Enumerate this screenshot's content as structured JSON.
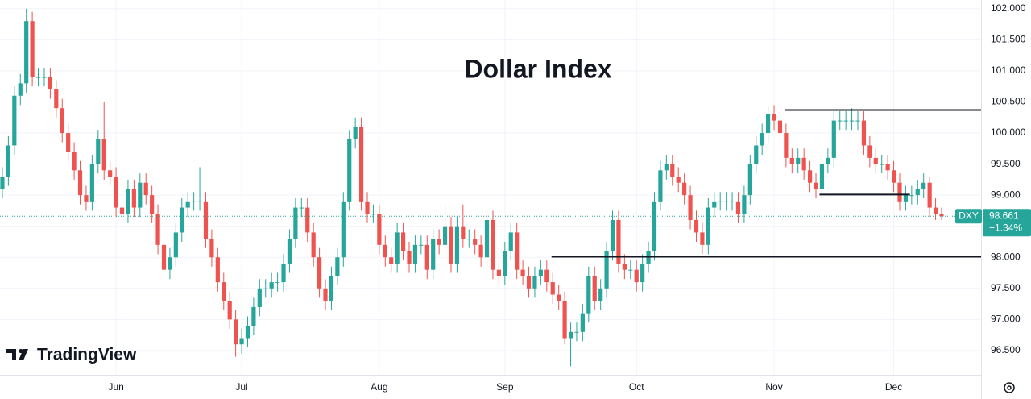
{
  "chart_data": {
    "type": "candlestick",
    "title": "Dollar Index",
    "brand": "TradingView",
    "up_color": "#26a69a",
    "down_color": "#ef5350",
    "grid": true,
    "xlim": [
      -0.4,
      163.6
    ],
    "ylim": [
      96.11,
      102.14
    ],
    "xticks": [
      {
        "value": 19,
        "label": "Jun"
      },
      {
        "value": 40,
        "label": "Jul"
      },
      {
        "value": 63,
        "label": "Aug"
      },
      {
        "value": 84,
        "label": "Sep"
      },
      {
        "value": 106,
        "label": "Oct"
      },
      {
        "value": 129,
        "label": "Nov"
      },
      {
        "value": 149,
        "label": "Dec"
      }
    ],
    "yticks": [
      {
        "value": 96.5,
        "label": "96.500"
      },
      {
        "value": 97,
        "label": "97.000"
      },
      {
        "value": 97.5,
        "label": "97.500"
      },
      {
        "value": 98,
        "label": "98.000"
      },
      {
        "value": 98.5,
        "label": "98.500"
      },
      {
        "value": 99,
        "label": "99.000"
      },
      {
        "value": 99.5,
        "label": "99.500"
      },
      {
        "value": 100,
        "label": "100.000"
      },
      {
        "value": 100.5,
        "label": "100.500"
      },
      {
        "value": 101,
        "label": "101.000"
      },
      {
        "value": 101.5,
        "label": "101.500"
      },
      {
        "value": 102,
        "label": "102.000"
      }
    ],
    "open": [
      99.1,
      99.3,
      99.8,
      100.6,
      100.8,
      101.8,
      100.9,
      100.9,
      100.9,
      100.7,
      100.4,
      100.0,
      99.7,
      99.4,
      99.0,
      98.9,
      99.5,
      99.9,
      99.4,
      99.3,
      98.8,
      98.7,
      99.1,
      98.8,
      99.2,
      99.0,
      98.7,
      98.2,
      97.8,
      98.0,
      98.4,
      98.8,
      98.9,
      98.9,
      98.9,
      98.3,
      98.0,
      97.6,
      97.3,
      97.0,
      96.6,
      96.7,
      96.9,
      97.2,
      97.5,
      97.5,
      97.6,
      97.6,
      97.9,
      98.3,
      98.8,
      98.8,
      98.4,
      98.0,
      97.5,
      97.3,
      97.7,
      98.0,
      98.9,
      99.9,
      100.1,
      98.9,
      98.7,
      98.7,
      98.2,
      98.0,
      97.9,
      98.4,
      98.1,
      97.9,
      98.2,
      98.2,
      97.8,
      98.3,
      98.2,
      98.5,
      97.9,
      98.5,
      98.3,
      98.3,
      98.2,
      98.0,
      98.6,
      97.8,
      97.7,
      98.1,
      98.4,
      97.8,
      97.7,
      97.5,
      97.7,
      97.8,
      97.6,
      97.4,
      97.3,
      96.7,
      96.8,
      96.8,
      97.1,
      97.7,
      97.3,
      97.5,
      98.1,
      98.6,
      97.9,
      97.8,
      97.8,
      97.6,
      97.9,
      98.1,
      98.9,
      99.4,
      99.5,
      99.3,
      99.2,
      99.0,
      98.6,
      98.4,
      98.2,
      98.8,
      98.9,
      98.9,
      98.9,
      98.9,
      98.7,
      99.0,
      99.5,
      99.8,
      100.0,
      100.3,
      100.2,
      100.0,
      99.6,
      99.5,
      99.6,
      99.4,
      99.2,
      99.1,
      99.5,
      99.6,
      100.2,
      100.2,
      100.2,
      100.2,
      100.2,
      99.8,
      99.6,
      99.5,
      99.5,
      99.4,
      99.2,
      98.9,
      99.0,
      99.0,
      99.1,
      99.2,
      98.8,
      98.7
    ],
    "high": [
      99.45,
      99.95,
      100.75,
      100.95,
      102.0,
      101.95,
      101.05,
      101.05,
      101.05,
      100.85,
      100.55,
      100.15,
      99.85,
      99.55,
      99.15,
      99.65,
      100.05,
      100.5,
      99.55,
      99.45,
      98.95,
      99.25,
      99.25,
      99.35,
      99.35,
      99.15,
      98.85,
      98.35,
      98.15,
      98.55,
      98.95,
      99.05,
      99.05,
      99.45,
      99.05,
      98.45,
      98.15,
      97.75,
      97.45,
      97.15,
      96.85,
      97.05,
      97.35,
      97.65,
      97.65,
      97.75,
      97.75,
      98.05,
      98.45,
      98.95,
      98.95,
      98.95,
      98.55,
      98.15,
      97.65,
      97.85,
      98.15,
      99.05,
      100.05,
      100.25,
      100.25,
      99.05,
      98.85,
      98.85,
      98.35,
      98.15,
      98.55,
      98.55,
      98.25,
      98.35,
      98.35,
      98.35,
      98.45,
      98.45,
      98.85,
      98.65,
      98.65,
      98.85,
      98.45,
      98.45,
      98.35,
      98.75,
      98.75,
      97.95,
      98.25,
      98.55,
      98.55,
      97.95,
      97.85,
      97.85,
      97.95,
      97.95,
      97.75,
      97.55,
      97.45,
      96.95,
      96.95,
      97.25,
      97.85,
      97.85,
      97.65,
      98.25,
      98.75,
      98.75,
      98.05,
      97.95,
      97.95,
      98.05,
      98.25,
      99.05,
      99.55,
      99.65,
      99.65,
      99.45,
      99.35,
      99.15,
      98.75,
      98.55,
      98.95,
      99.05,
      99.05,
      99.05,
      99.05,
      99.05,
      99.15,
      99.65,
      99.95,
      100.15,
      100.45,
      100.45,
      100.35,
      100.15,
      99.75,
      99.75,
      99.75,
      99.55,
      99.35,
      99.65,
      99.75,
      100.35,
      100.35,
      100.35,
      100.4,
      100.35,
      100.35,
      99.95,
      99.75,
      99.65,
      99.65,
      99.55,
      99.35,
      99.15,
      99.15,
      99.25,
      99.35,
      99.3,
      98.95,
      98.8
    ],
    "low": [
      98.95,
      99.15,
      99.65,
      100.45,
      100.65,
      100.75,
      100.75,
      100.75,
      100.55,
      100.25,
      99.85,
      99.55,
      99.25,
      98.85,
      98.75,
      98.75,
      99.35,
      99.25,
      99.15,
      98.65,
      98.55,
      98.55,
      98.65,
      98.65,
      98.85,
      98.55,
      98.05,
      97.6,
      97.65,
      97.85,
      98.25,
      98.65,
      98.75,
      98.75,
      98.15,
      97.85,
      97.45,
      97.15,
      96.85,
      96.4,
      96.45,
      96.55,
      96.75,
      97.05,
      97.35,
      97.35,
      97.45,
      97.45,
      97.75,
      98.15,
      98.65,
      98.25,
      97.85,
      97.35,
      97.15,
      97.15,
      97.55,
      97.85,
      98.75,
      99.75,
      98.75,
      98.55,
      98.55,
      98.05,
      97.85,
      97.75,
      97.75,
      97.95,
      97.75,
      97.75,
      98.05,
      97.65,
      97.65,
      98.05,
      98.05,
      97.75,
      97.75,
      98.15,
      98.15,
      98.05,
      97.85,
      97.85,
      97.65,
      97.55,
      97.55,
      97.95,
      97.65,
      97.55,
      97.35,
      97.35,
      97.55,
      97.45,
      97.25,
      97.15,
      96.6,
      96.25,
      96.65,
      96.65,
      96.95,
      97.15,
      97.15,
      97.35,
      97.95,
      97.75,
      97.65,
      97.65,
      97.45,
      97.45,
      97.75,
      97.95,
      98.75,
      99.25,
      99.15,
      99.05,
      98.85,
      98.45,
      98.25,
      98.05,
      98.05,
      98.65,
      98.75,
      98.75,
      98.75,
      98.55,
      98.55,
      98.85,
      99.35,
      99.65,
      99.85,
      100.05,
      99.85,
      99.45,
      99.35,
      99.35,
      99.25,
      99.05,
      98.95,
      98.95,
      99.35,
      99.45,
      100.05,
      100.05,
      100.05,
      100.05,
      99.65,
      99.45,
      99.35,
      99.35,
      99.25,
      99.05,
      98.75,
      98.75,
      98.85,
      98.85,
      98.95,
      98.65,
      98.6,
      98.6
    ],
    "close": [
      99.3,
      99.8,
      100.6,
      100.8,
      101.8,
      100.9,
      100.9,
      100.9,
      100.7,
      100.4,
      100.0,
      99.7,
      99.4,
      99.0,
      98.9,
      99.5,
      99.9,
      99.4,
      99.3,
      98.8,
      98.7,
      99.1,
      98.8,
      99.2,
      99.0,
      98.7,
      98.2,
      97.8,
      98.0,
      98.4,
      98.8,
      98.9,
      98.9,
      98.9,
      98.3,
      98.0,
      97.6,
      97.3,
      97.0,
      96.6,
      96.7,
      96.9,
      97.2,
      97.5,
      97.5,
      97.6,
      97.6,
      97.9,
      98.3,
      98.8,
      98.8,
      98.4,
      98.0,
      97.5,
      97.3,
      97.7,
      98.0,
      98.9,
      99.9,
      100.1,
      98.9,
      98.7,
      98.7,
      98.2,
      98.0,
      97.9,
      98.4,
      98.1,
      97.9,
      98.2,
      98.2,
      97.8,
      98.3,
      98.2,
      98.5,
      97.9,
      98.5,
      98.3,
      98.3,
      98.2,
      98.0,
      98.6,
      97.8,
      97.7,
      98.1,
      98.4,
      97.8,
      97.7,
      97.5,
      97.7,
      97.8,
      97.6,
      97.4,
      97.3,
      96.7,
      96.8,
      96.8,
      97.1,
      97.7,
      97.3,
      97.5,
      98.1,
      98.6,
      97.9,
      97.8,
      97.8,
      97.6,
      97.9,
      98.1,
      98.9,
      99.4,
      99.5,
      99.3,
      99.2,
      99.0,
      98.6,
      98.4,
      98.2,
      98.8,
      98.9,
      98.9,
      98.9,
      98.9,
      98.7,
      99.0,
      99.5,
      99.8,
      100.0,
      100.3,
      100.2,
      100.0,
      99.6,
      99.5,
      99.6,
      99.4,
      99.2,
      99.1,
      99.5,
      99.6,
      100.2,
      100.2,
      100.2,
      100.2,
      100.2,
      99.8,
      99.6,
      99.5,
      99.5,
      99.4,
      99.2,
      98.9,
      99.0,
      99.0,
      99.1,
      99.2,
      98.8,
      98.7,
      98.661
    ],
    "levels": [
      {
        "value": 100.37,
        "from": 130.8,
        "to": 163.6
      },
      {
        "value": 99.01,
        "from": 136.6,
        "to": 151.7
      },
      {
        "value": 98.01,
        "from": 91.8,
        "to": 163.6
      }
    ],
    "last": {
      "symbol": "DXY",
      "price": 98.661,
      "change": {
        "value": -1.34,
        "label": "−1.34%"
      }
    }
  }
}
